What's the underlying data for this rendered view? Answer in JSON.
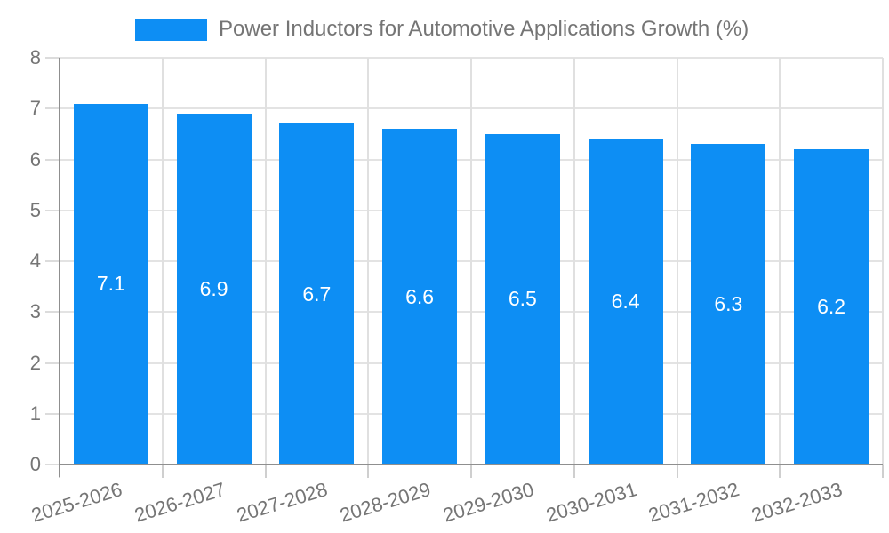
{
  "chart_data": {
    "type": "bar",
    "title": "Power Inductors for Automotive Applications Growth (%)",
    "categories": [
      "2025-2026",
      "2026-2027",
      "2027-2028",
      "2028-2029",
      "2029-2030",
      "2030-2031",
      "2031-2032",
      "2032-2033"
    ],
    "values": [
      7.1,
      6.9,
      6.7,
      6.6,
      6.5,
      6.4,
      6.3,
      6.2
    ],
    "value_labels": [
      "7.1",
      "6.9",
      "6.7",
      "6.6",
      "6.5",
      "6.4",
      "6.3",
      "6.2"
    ],
    "xlabel": "",
    "ylabel": "",
    "ylim": [
      0,
      8
    ],
    "yticks": [
      0,
      1,
      2,
      3,
      4,
      5,
      6,
      7,
      8
    ],
    "grid": true,
    "legend_position": "top",
    "colors": {
      "bar": "#0d8ef4",
      "bar_value_text": "#ffffff",
      "axis_text": "#757575",
      "axis_line": "#8f8f8f",
      "gridline": "#e3e3e3",
      "background": "#ffffff"
    }
  },
  "legend": {
    "swatch_color": "#0d8ef4",
    "label": "Power Inductors for Automotive Applications Growth (%)"
  }
}
